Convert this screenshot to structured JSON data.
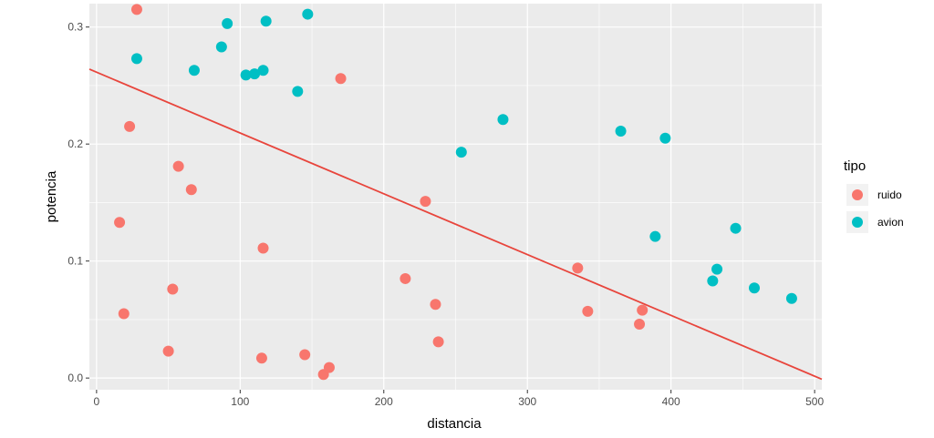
{
  "chart_data": {
    "type": "scatter",
    "xlabel": "distancia",
    "ylabel": "potencia",
    "xlim": [
      -5,
      505
    ],
    "ylim": [
      -0.01,
      0.32
    ],
    "x_ticks": [
      0,
      100,
      200,
      300,
      400,
      500
    ],
    "y_ticks": [
      0.0,
      0.1,
      0.2,
      0.3
    ],
    "x_tick_labels": [
      "0",
      "100",
      "200",
      "300",
      "400",
      "500"
    ],
    "y_tick_labels": [
      "0.0",
      "0.1",
      "0.2",
      "0.3"
    ],
    "grid": true,
    "legend": {
      "title": "tipo",
      "position": "right"
    },
    "series": [
      {
        "name": "ruido",
        "color": "#F8766D",
        "points": [
          [
            28,
            0.315
          ],
          [
            23,
            0.215
          ],
          [
            57,
            0.181
          ],
          [
            66,
            0.161
          ],
          [
            16,
            0.133
          ],
          [
            116,
            0.111
          ],
          [
            53,
            0.076
          ],
          [
            19,
            0.055
          ],
          [
            50,
            0.023
          ],
          [
            115,
            0.017
          ],
          [
            145,
            0.02
          ],
          [
            158,
            0.003
          ],
          [
            162,
            0.009
          ],
          [
            170,
            0.256
          ],
          [
            215,
            0.085
          ],
          [
            229,
            0.151
          ],
          [
            236,
            0.063
          ],
          [
            238,
            0.031
          ],
          [
            335,
            0.094
          ],
          [
            342,
            0.057
          ],
          [
            378,
            0.046
          ],
          [
            380,
            0.058
          ]
        ]
      },
      {
        "name": "avion",
        "color": "#00BFC4",
        "points": [
          [
            28,
            0.273
          ],
          [
            91,
            0.303
          ],
          [
            118,
            0.305
          ],
          [
            147,
            0.311
          ],
          [
            87,
            0.283
          ],
          [
            68,
            0.263
          ],
          [
            104,
            0.259
          ],
          [
            110,
            0.26
          ],
          [
            116,
            0.263
          ],
          [
            140,
            0.245
          ],
          [
            254,
            0.193
          ],
          [
            283,
            0.221
          ],
          [
            365,
            0.211
          ],
          [
            396,
            0.205
          ],
          [
            389,
            0.121
          ],
          [
            445,
            0.128
          ],
          [
            432,
            0.093
          ],
          [
            429,
            0.083
          ],
          [
            458,
            0.077
          ],
          [
            484,
            0.068
          ]
        ]
      }
    ],
    "fit_line": {
      "color": "#E8453C",
      "x": [
        -5,
        505
      ],
      "y": [
        0.264,
        -0.001
      ]
    }
  }
}
